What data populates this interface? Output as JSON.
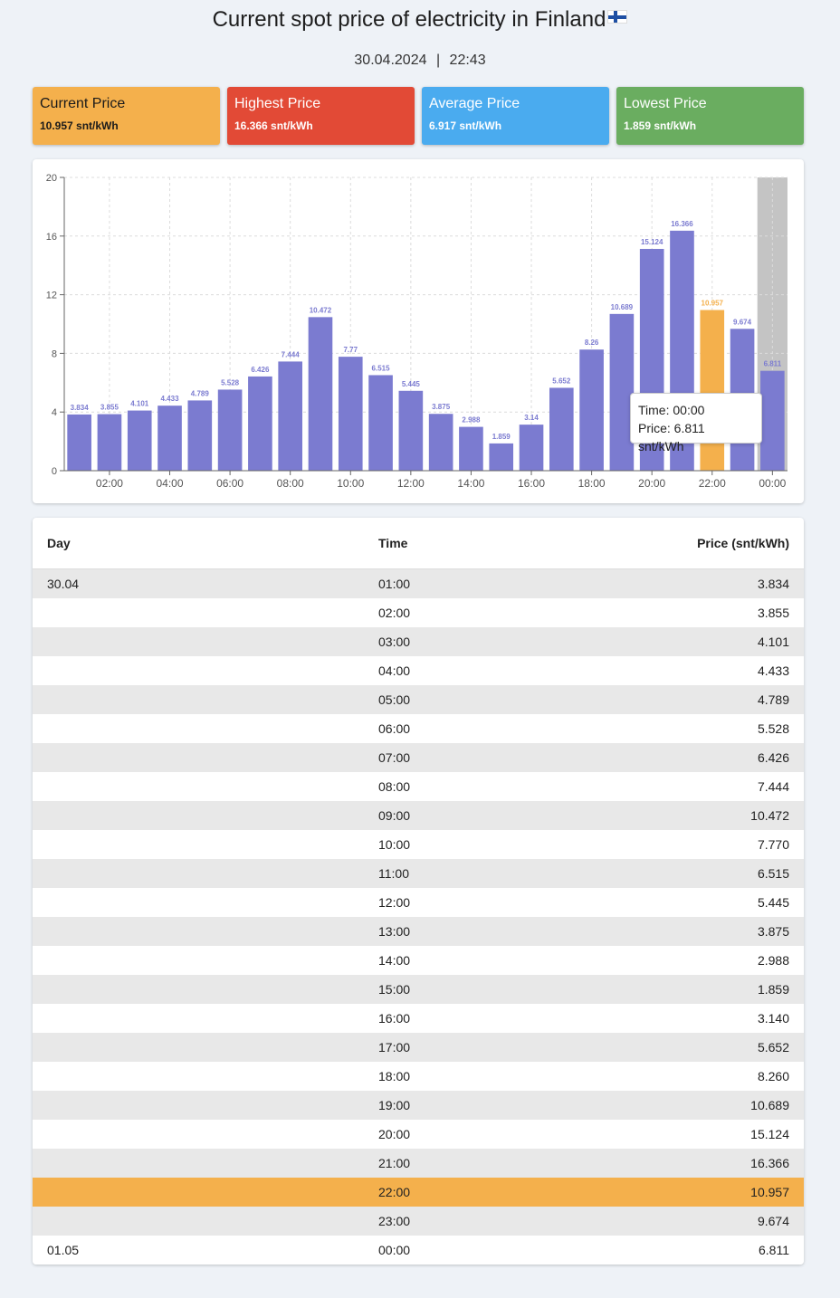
{
  "header": {
    "title": "Current spot price of electricity in Finland",
    "flag_icon": "finland-flag-icon",
    "date": "30.04.2024",
    "separator": "|",
    "time": "22:43"
  },
  "cards": {
    "current": {
      "title": "Current Price",
      "value": "10.957 snt/kWh",
      "color": "#f4b04c"
    },
    "highest": {
      "title": "Highest Price",
      "value": "16.366 snt/kWh",
      "color": "#e24a36"
    },
    "average": {
      "title": "Average Price",
      "value": "6.917 snt/kWh",
      "color": "#4aabef"
    },
    "lowest": {
      "title": "Lowest Price",
      "value": "1.859 snt/kWh",
      "color": "#6aad60"
    }
  },
  "chart_data": {
    "type": "bar",
    "categories": [
      "01:00",
      "02:00",
      "03:00",
      "04:00",
      "05:00",
      "06:00",
      "07:00",
      "08:00",
      "09:00",
      "10:00",
      "11:00",
      "12:00",
      "13:00",
      "14:00",
      "15:00",
      "16:00",
      "17:00",
      "18:00",
      "19:00",
      "20:00",
      "21:00",
      "22:00",
      "23:00",
      "00:00"
    ],
    "values": [
      3.834,
      3.855,
      4.101,
      4.433,
      4.789,
      5.528,
      6.426,
      7.444,
      10.472,
      7.77,
      6.515,
      5.445,
      3.875,
      2.988,
      1.859,
      3.14,
      5.652,
      8.26,
      10.689,
      15.124,
      16.366,
      10.957,
      9.674,
      6.811
    ],
    "value_labels": [
      "3.834",
      "3.855",
      "4.101",
      "4.433",
      "4.789",
      "5.528",
      "6.426",
      "7.444",
      "10.472",
      "7.77",
      "6.515",
      "5.445",
      "3.875",
      "2.988",
      "1.859",
      "3.14",
      "5.652",
      "8.26",
      "10.689",
      "15.124",
      "16.366",
      "10.957",
      "9.674",
      "6.811"
    ],
    "x_tick_labels": [
      "02:00",
      "04:00",
      "06:00",
      "08:00",
      "10:00",
      "12:00",
      "14:00",
      "16:00",
      "18:00",
      "20:00",
      "22:00",
      "00:00"
    ],
    "y_ticks": [
      0,
      4,
      8,
      12,
      16,
      20
    ],
    "ylim": [
      0,
      20
    ],
    "grid": true,
    "highlight_index": 21,
    "hover_index": 23,
    "bar_color": "#7b7bd0",
    "highlight_color": "#f4b04c",
    "hover_band_color": "#c4c4c4"
  },
  "tooltip": {
    "time_label": "Time: 00:00",
    "price_label": "Price: 6.811 snt/kWh"
  },
  "table": {
    "headers": {
      "day": "Day",
      "time": "Time",
      "price": "Price (snt/kWh)"
    },
    "current_row_index": 21,
    "rows": [
      {
        "day": "30.04",
        "time": "01:00",
        "price": "3.834"
      },
      {
        "day": "",
        "time": "02:00",
        "price": "3.855"
      },
      {
        "day": "",
        "time": "03:00",
        "price": "4.101"
      },
      {
        "day": "",
        "time": "04:00",
        "price": "4.433"
      },
      {
        "day": "",
        "time": "05:00",
        "price": "4.789"
      },
      {
        "day": "",
        "time": "06:00",
        "price": "5.528"
      },
      {
        "day": "",
        "time": "07:00",
        "price": "6.426"
      },
      {
        "day": "",
        "time": "08:00",
        "price": "7.444"
      },
      {
        "day": "",
        "time": "09:00",
        "price": "10.472"
      },
      {
        "day": "",
        "time": "10:00",
        "price": "7.770"
      },
      {
        "day": "",
        "time": "11:00",
        "price": "6.515"
      },
      {
        "day": "",
        "time": "12:00",
        "price": "5.445"
      },
      {
        "day": "",
        "time": "13:00",
        "price": "3.875"
      },
      {
        "day": "",
        "time": "14:00",
        "price": "2.988"
      },
      {
        "day": "",
        "time": "15:00",
        "price": "1.859"
      },
      {
        "day": "",
        "time": "16:00",
        "price": "3.140"
      },
      {
        "day": "",
        "time": "17:00",
        "price": "5.652"
      },
      {
        "day": "",
        "time": "18:00",
        "price": "8.260"
      },
      {
        "day": "",
        "time": "19:00",
        "price": "10.689"
      },
      {
        "day": "",
        "time": "20:00",
        "price": "15.124"
      },
      {
        "day": "",
        "time": "21:00",
        "price": "16.366"
      },
      {
        "day": "",
        "time": "22:00",
        "price": "10.957"
      },
      {
        "day": "",
        "time": "23:00",
        "price": "9.674"
      },
      {
        "day": "01.05",
        "time": "00:00",
        "price": "6.811"
      }
    ]
  }
}
